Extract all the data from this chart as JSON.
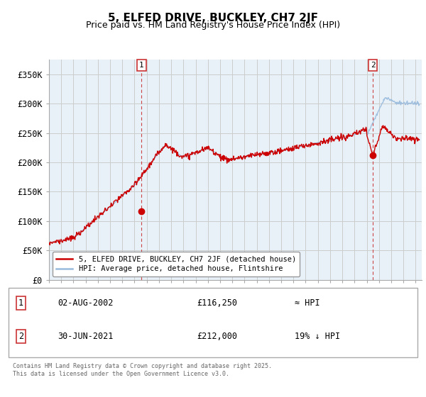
{
  "title": "5, ELFED DRIVE, BUCKLEY, CH7 2JF",
  "subtitle": "Price paid vs. HM Land Registry's House Price Index (HPI)",
  "ylabel_ticks": [
    "£0",
    "£50K",
    "£100K",
    "£150K",
    "£200K",
    "£250K",
    "£300K",
    "£350K"
  ],
  "ytick_values": [
    0,
    50000,
    100000,
    150000,
    200000,
    250000,
    300000,
    350000
  ],
  "ylim": [
    0,
    375000
  ],
  "xlim_start": 1995.0,
  "xlim_end": 2025.5,
  "red_color": "#cc0000",
  "blue_color": "#99bbdd",
  "grid_color": "#cccccc",
  "bg_color": "#e8f0f8",
  "ann1_x": 2002.58,
  "ann1_y": 116250,
  "ann2_x": 2021.5,
  "ann2_y": 212000,
  "legend_line1": "5, ELFED DRIVE, BUCKLEY, CH7 2JF (detached house)",
  "legend_line2": "HPI: Average price, detached house, Flintshire",
  "footnote": "Contains HM Land Registry data © Crown copyright and database right 2025.\nThis data is licensed under the Open Government Licence v3.0.",
  "table_row1_label": "1",
  "table_row1_date": "02-AUG-2002",
  "table_row1_price": "£116,250",
  "table_row1_hpi": "≈ HPI",
  "table_row2_label": "2",
  "table_row2_date": "30-JUN-2021",
  "table_row2_price": "£212,000",
  "table_row2_hpi": "19% ↓ HPI"
}
